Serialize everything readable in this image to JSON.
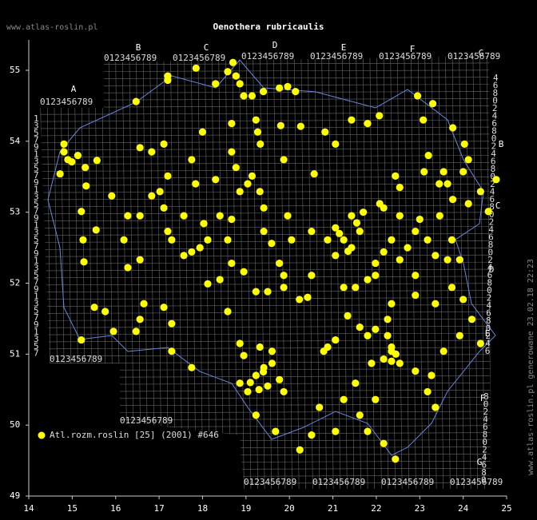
{
  "chart_data": {
    "type": "scatter",
    "title": "Oenothera rubricaulis",
    "site": "www.atlas-roslin.pl",
    "credit": "www.atlas-roslin.pl generowane 23.02.18 22:23",
    "legend_label": "Atl.rozm.roslin [25] (2001) #646",
    "color": "#ffff00",
    "grid_digits": "0123456789",
    "row_digits": [
      "1",
      "3",
      "5",
      "7",
      "9"
    ],
    "right_digits": [
      "4",
      "6",
      "8",
      "0",
      "2"
    ],
    "top_letters": [
      "A",
      "B",
      "C",
      "D",
      "E",
      "F",
      "G"
    ],
    "right_letters": [
      "B",
      "C",
      "D",
      "E",
      "F",
      "G"
    ],
    "xlim": [
      14,
      25
    ],
    "ylim": [
      49,
      55.4
    ],
    "xticks": [
      14,
      15,
      16,
      17,
      18,
      19,
      20,
      21,
      22,
      23,
      24,
      25
    ],
    "yticks": [
      49,
      50,
      51,
      52,
      53,
      54,
      55
    ],
    "x": [
      14.81,
      14.81,
      14.9,
      14.99,
      15.13,
      15.3,
      15.57,
      14.72,
      15.32,
      15.21,
      15.55,
      15.25,
      15.27,
      15.51,
      15.76,
      15.95,
      15.21,
      17.2,
      17.2,
      17.85,
      16.47,
      18.3,
      18.58,
      18.7,
      18.77,
      18.86,
      18.95,
      19.14,
      19.4,
      19.77,
      19.96,
      20.14,
      18.67,
      19.23,
      19.27,
      19.33,
      19.8,
      20.26,
      20.82,
      21.06,
      21.43,
      21.8,
      22.07,
      22.95,
      23.08,
      23.3,
      23.76,
      24.03,
      24.12,
      24.76,
      24.58,
      24.12,
      24.4,
      23.2,
      23.1,
      23.45,
      23.76,
      22.44,
      22.08,
      21.43,
      21.7,
      22.17,
      22.54,
      21.06,
      21.25,
      21.43,
      21.62,
      21.06,
      20.88,
      20.51,
      22.9,
      23.18,
      23.36,
      23.64,
      23.92,
      23.74,
      22.35,
      22.54,
      21.98,
      22.9,
      23.74,
      23.36,
      24.0,
      22.9,
      22.35,
      22.26,
      22.26,
      22.35,
      22.17,
      22.54,
      22.9,
      23.27,
      23.55,
      23.92,
      24.2,
      24.4,
      23.36,
      23.18,
      21.8,
      21.62,
      21.98,
      21.06,
      20.79,
      20.88,
      21.34,
      21.25,
      21.52,
      20.51,
      20.23,
      20.42,
      19.87,
      19.77,
      19.87,
      19.5,
      19.23,
      18.95,
      18.67,
      18.58,
      18.4,
      18.12,
      17.94,
      17.75,
      17.57,
      17.29,
      17.2,
      17.11,
      17.02,
      16.83,
      16.56,
      16.28,
      15.91,
      16.19,
      16.28,
      16.56,
      16.65,
      16.56,
      16.47,
      17.29,
      17.29,
      17.75,
      17.11,
      18.12,
      18.4,
      18.58,
      18.86,
      18.95,
      18.86,
      19.04,
      19.23,
      19.41,
      19.6,
      19.77,
      19.87,
      19.32,
      19.6,
      19.23,
      19.68,
      20.24,
      20.51,
      20.69,
      21.06,
      21.62,
      21.8,
      22.17,
      22.44,
      21.98,
      21.25,
      21.52,
      21.89,
      18.67,
      18.86,
      19.04,
      18.77,
      19.14,
      19.32,
      19.41,
      19.96,
      18.67,
      18.0,
      17.75,
      17.11,
      16.83,
      16.56,
      17.2,
      17.84,
      18.3,
      17.57,
      18.03,
      19.87,
      20.57,
      20.05,
      19.59,
      19.41,
      21.8,
      21.98,
      22.72,
      22.17,
      22.54,
      23.0,
      23.46,
      23.64,
      23.55,
      24.0,
      21.15,
      21.35,
      21.55,
      22.35,
      22.35,
      22.45,
      19.1,
      19.3,
      19.5,
      19.4
    ],
    "y": [
      53.96,
      53.85,
      53.74,
      53.71,
      53.8,
      53.63,
      53.73,
      53.54,
      53.37,
      53.01,
      52.75,
      52.61,
      52.3,
      51.66,
      51.6,
      51.32,
      51.2,
      54.92,
      54.86,
      55.03,
      54.56,
      54.81,
      54.98,
      55.11,
      54.92,
      54.81,
      54.64,
      54.64,
      54.7,
      54.75,
      54.77,
      54.7,
      54.25,
      54.3,
      54.13,
      53.96,
      54.22,
      54.21,
      54.13,
      53.96,
      54.3,
      54.25,
      54.36,
      54.64,
      54.3,
      54.53,
      54.19,
      53.96,
      53.74,
      53.46,
      53.01,
      53.12,
      53.29,
      53.8,
      53.57,
      53.4,
      53.18,
      53.51,
      53.12,
      52.95,
      53.0,
      53.06,
      52.95,
      52.78,
      52.61,
      52.5,
      52.73,
      52.39,
      52.61,
      52.73,
      52.73,
      52.61,
      52.39,
      52.33,
      52.33,
      52.61,
      52.61,
      52.33,
      52.28,
      52.11,
      51.94,
      51.71,
      51.77,
      51.83,
      51.71,
      51.49,
      51.26,
      51.04,
      50.93,
      50.87,
      50.76,
      50.7,
      51.04,
      51.26,
      51.49,
      51.15,
      50.25,
      50.47,
      51.26,
      51.38,
      51.35,
      51.2,
      51.04,
      51.1,
      51.54,
      51.94,
      51.94,
      52.11,
      51.77,
      51.8,
      52.11,
      52.28,
      51.94,
      51.88,
      51.88,
      52.16,
      52.28,
      52.61,
      52.95,
      52.61,
      52.5,
      52.44,
      52.39,
      52.61,
      52.73,
      53.06,
      53.29,
      53.23,
      52.95,
      52.95,
      53.23,
      52.61,
      52.22,
      52.33,
      51.71,
      51.49,
      51.32,
      51.43,
      51.04,
      50.81,
      51.66,
      51.99,
      52.05,
      51.6,
      51.15,
      50.98,
      50.59,
      50.47,
      50.7,
      50.81,
      50.87,
      50.64,
      50.47,
      51.1,
      51.04,
      50.14,
      49.91,
      49.65,
      49.86,
      50.25,
      49.91,
      50.14,
      49.91,
      49.74,
      49.52,
      50.36,
      50.36,
      50.59,
      50.87,
      52.9,
      53.29,
      53.4,
      53.63,
      53.51,
      53.29,
      53.06,
      52.95,
      53.85,
      54.13,
      53.74,
      53.96,
      53.85,
      53.91,
      53.51,
      53.4,
      53.46,
      52.95,
      52.84,
      53.74,
      53.54,
      52.61,
      52.56,
      52.73,
      52.05,
      52.11,
      52.5,
      52.44,
      53.35,
      52.9,
      52.95,
      53.4,
      53.57,
      53.57,
      52.7,
      52.45,
      52.85,
      51.1,
      50.9,
      51.0,
      50.6,
      50.5,
      50.55,
      50.75
    ]
  }
}
